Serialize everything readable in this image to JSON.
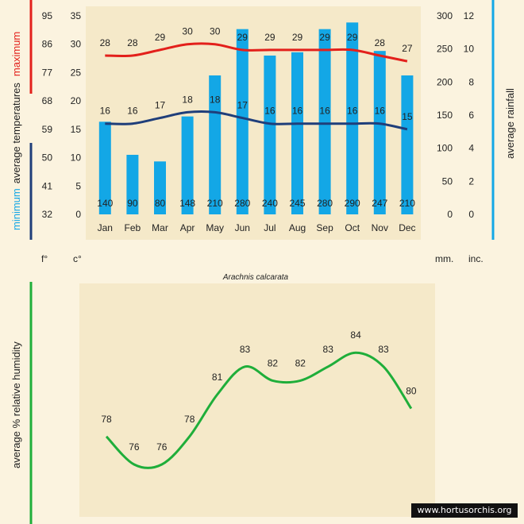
{
  "chart_data": [
    {
      "type": "bar",
      "categories": [
        "Jan",
        "Feb",
        "Mar",
        "Apr",
        "May",
        "Jun",
        "Jul",
        "Aug",
        "Sep",
        "Oct",
        "Nov",
        "Dec"
      ],
      "series": [
        {
          "name": "average rainfall",
          "kind": "bar",
          "axis": "rain",
          "values": [
            140,
            90,
            80,
            148,
            210,
            280,
            240,
            245,
            280,
            290,
            247,
            210
          ],
          "color": "#13a7e6"
        },
        {
          "name": "maximum",
          "kind": "line",
          "axis": "temp",
          "values": [
            28,
            28,
            29,
            30,
            30,
            29,
            29,
            29,
            29,
            29,
            28,
            27
          ],
          "color": "#e3201b"
        },
        {
          "name": "minimum",
          "kind": "line",
          "axis": "temp",
          "values": [
            16,
            16,
            17,
            18,
            18,
            17,
            16,
            16,
            16,
            16,
            16,
            15
          ],
          "color": "#1f3e7a"
        }
      ],
      "axes": {
        "celsius": {
          "ticks": [
            "0",
            "5",
            "10",
            "15",
            "20",
            "25",
            "30",
            "35"
          ],
          "range": [
            0,
            35
          ],
          "unit": "c°"
        },
        "fahrenheit": {
          "ticks": [
            "32",
            "41",
            "50",
            "59",
            "68",
            "77",
            "86",
            "95"
          ],
          "unit": "f°"
        },
        "mm": {
          "ticks": [
            "0",
            "50",
            "100",
            "150",
            "200",
            "250",
            "300"
          ],
          "range": [
            0,
            300
          ],
          "unit": "mm."
        },
        "inches": {
          "ticks": [
            "0",
            "2",
            "4",
            "6",
            "8",
            "10",
            "12"
          ],
          "unit": "inc."
        }
      },
      "ylabel_left": {
        "minimum": "minimum",
        "average": "average  temperatures",
        "maximum": "maximum"
      },
      "ylabel_right": "average rainfall",
      "caption": "Arachnis calcarata"
    },
    {
      "type": "line",
      "categories": [
        "Jan",
        "Feb",
        "Mar",
        "Apr",
        "May",
        "Jun",
        "Jul",
        "Aug",
        "Sep",
        "Oct",
        "Nov",
        "Dec"
      ],
      "series": [
        {
          "name": "average % relative humidity",
          "values": [
            78,
            76,
            76,
            78,
            81,
            83,
            82,
            82,
            83,
            84,
            83,
            80
          ],
          "color": "#1fae3a"
        }
      ],
      "ylabel": "average %  relative  humidity"
    }
  ],
  "credit": "www.hortusorchis.org",
  "colors": {
    "background": "#fbf3df",
    "rain": "#13a7e6",
    "max": "#e3201b",
    "min": "#1f3e7a",
    "humidity": "#1fae3a"
  }
}
